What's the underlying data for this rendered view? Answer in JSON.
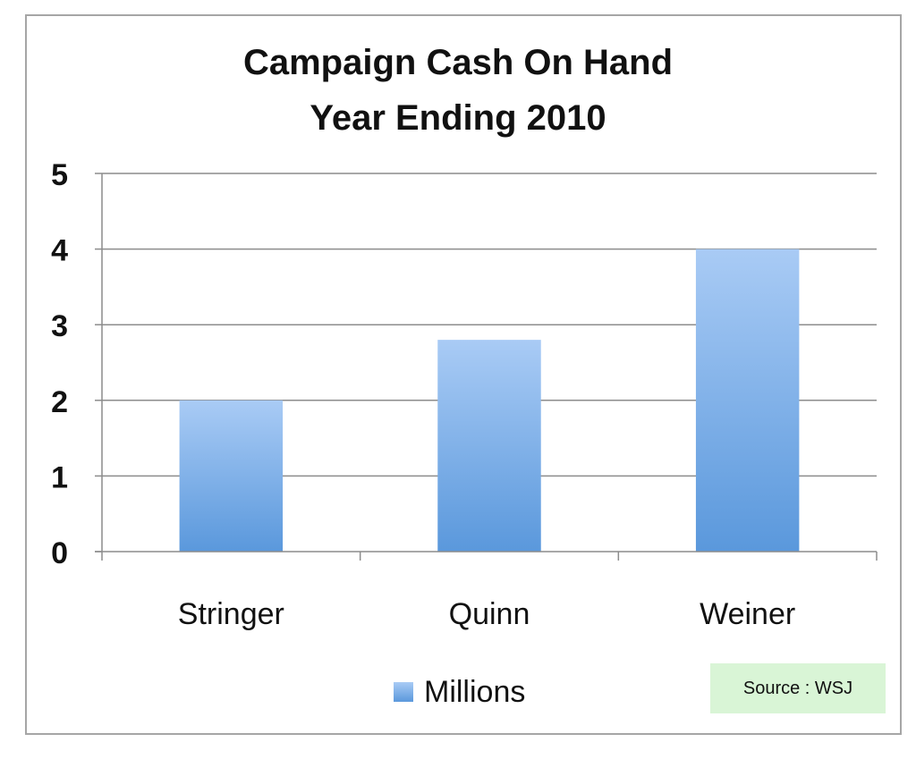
{
  "chart_data": {
    "type": "bar",
    "title": "Campaign Cash On Hand",
    "subtitle": "Year Ending 2010",
    "categories": [
      "Stringer",
      "Quinn",
      "Weiner"
    ],
    "series": [
      {
        "name": "Millions",
        "values": [
          2,
          2.8,
          4
        ]
      }
    ],
    "ylim": [
      0,
      5
    ],
    "yticks": [
      "0",
      "1",
      "2",
      "3",
      "4",
      "5"
    ],
    "grid": true,
    "legend_position": "bottom",
    "bar_colors": [
      "#a9cbf5",
      "#5a98dc"
    ]
  },
  "source_note": "Source : WSJ"
}
